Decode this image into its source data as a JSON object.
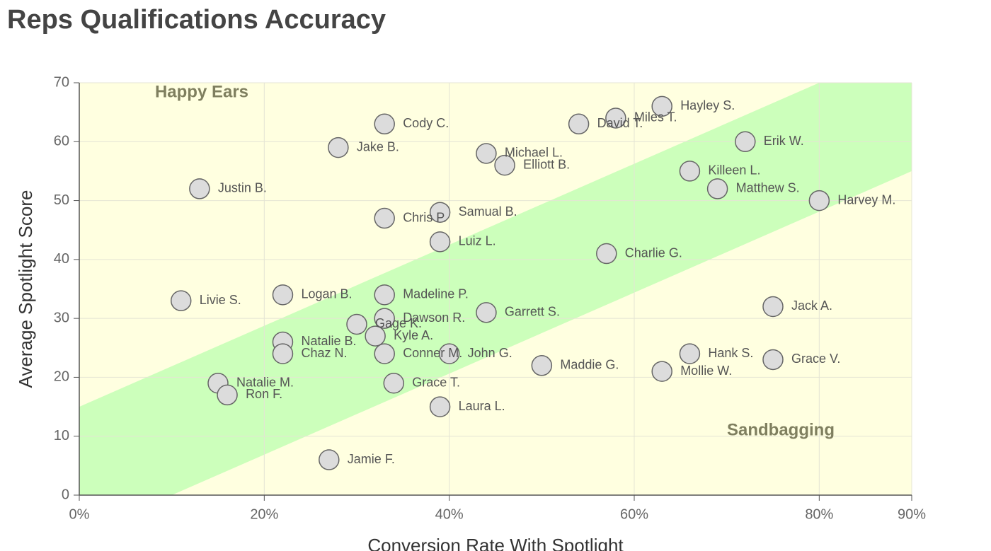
{
  "chart_data": {
    "type": "scatter",
    "title": "Reps Qualifications Accuracy",
    "x_label": "Conversion Rate With Spotlight",
    "y_label": "Average Spotlight Score",
    "annotations": [
      "Happy Ears",
      "Sandbagging"
    ],
    "labels": [
      "Hayley S.",
      "Miles T.",
      "David T.",
      "Erik W.",
      "Cody C.",
      "Jake B.",
      "Michael L.",
      "Elliott B.",
      "Killeen L.",
      "Matthew S.",
      "Justin B.",
      "Harvey M.",
      "Samual B.",
      "Chris P.",
      "Luiz L.",
      "Charlie G.",
      "Livie S.",
      "Logan B.",
      "Madeline P.",
      "Dawson R.",
      "Garrett S.",
      "Jack A.",
      "Gage K.",
      "Kyle A.",
      "Natalie B.",
      "Chaz N.",
      "Conner M.",
      "John G.",
      "Hank S.",
      "Grace V.",
      "Maddie G.",
      "Mollie W.",
      "Natalie M.",
      "Ron F.",
      "Grace T.",
      "Laura L.",
      "Jamie F."
    ],
    "x": [
      63,
      58,
      54,
      72,
      33,
      28,
      44,
      46,
      66,
      69,
      13,
      80,
      39,
      33,
      39,
      57,
      11,
      22,
      33,
      33,
      44,
      75,
      30,
      32,
      22,
      22,
      33,
      40,
      66,
      75,
      50,
      63,
      15,
      16,
      34,
      39,
      27
    ],
    "values": [
      66,
      64,
      63,
      60,
      63,
      59,
      58,
      56,
      55,
      52,
      52,
      50,
      48,
      47,
      43,
      41,
      33,
      34,
      34,
      30,
      31,
      32,
      29,
      27,
      26,
      24,
      24,
      24,
      24,
      23,
      22,
      21,
      19,
      17,
      19,
      15,
      6
    ],
    "color": "#dcdcdc",
    "xlim": [
      0,
      90
    ],
    "ylim": [
      0,
      70
    ],
    "xticks": [
      {
        "value": 0,
        "label": "0%"
      },
      {
        "value": 20,
        "label": "20%"
      },
      {
        "value": 40,
        "label": "40%"
      },
      {
        "value": 60,
        "label": "60%"
      },
      {
        "value": 80,
        "label": "80%"
      },
      {
        "value": 90,
        "label": "90%"
      }
    ],
    "yticks": [
      0,
      10,
      20,
      30,
      40,
      50,
      60,
      70
    ],
    "grid": true,
    "background_color": "#ffffe0",
    "band_color": "#ccffbb",
    "band_upper": [
      [
        0,
        15
      ],
      [
        80,
        70
      ]
    ],
    "band_lower": [
      [
        10,
        0
      ],
      [
        90,
        55
      ]
    ]
  }
}
